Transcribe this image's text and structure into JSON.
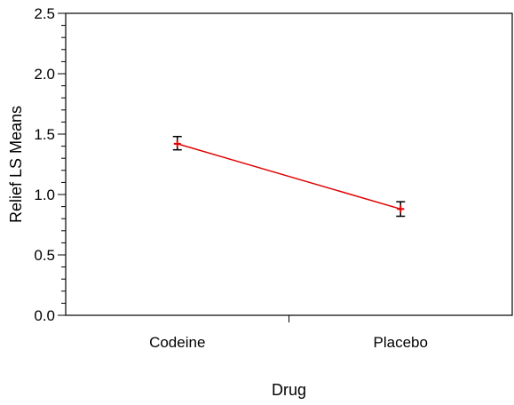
{
  "chart_data": {
    "type": "line",
    "title": "",
    "xlabel": "Drug",
    "ylabel": "Relief LS Means",
    "categories": [
      "Codeine",
      "Placebo"
    ],
    "series": [
      {
        "values": [
          1.42,
          0.88
        ],
        "error_low": [
          1.37,
          0.82
        ],
        "error_high": [
          1.48,
          0.94
        ],
        "color": "#e00000"
      }
    ],
    "ylim": [
      0,
      2.5
    ],
    "yticks": [
      "0.0",
      "0.5",
      "1.0",
      "1.5",
      "2.0",
      "2.5"
    ],
    "yticks_values": [
      0,
      0.5,
      1.0,
      1.5,
      2.0,
      2.5
    ],
    "y_minor_step": 0.1,
    "grid": false,
    "legend": "none",
    "error_bar_color": "#000000"
  }
}
